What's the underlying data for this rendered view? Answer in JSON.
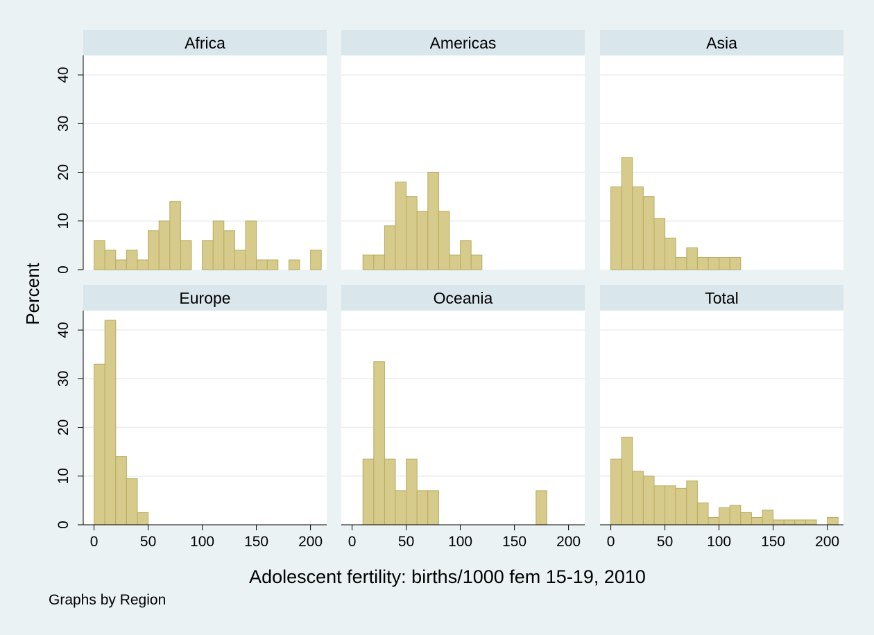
{
  "chart_data": {
    "type": "bar",
    "subtype": "histogram",
    "xlabel": "Adolescent fertility: births/1000 fem 15-19, 2010",
    "ylabel": "Percent",
    "note": "Graphs by Region",
    "xlim": [
      -10,
      215
    ],
    "ylim": [
      0,
      44
    ],
    "x_ticks": [
      0,
      50,
      100,
      150,
      200
    ],
    "y_ticks": [
      0,
      10,
      20,
      30,
      40
    ],
    "bin_start": 0,
    "bin_width": 10,
    "grid": true,
    "colors": {
      "background": "#eaf2f3",
      "plot_bg": "#ffffff",
      "panel_header": "#d9e6eb",
      "bar_fill": "#d6cb8a",
      "bar_stroke": "#b8ab62",
      "gridline": "#e8eef0"
    },
    "panels": [
      {
        "title": "Africa",
        "values": [
          6,
          4,
          2,
          4,
          2,
          8,
          10,
          14,
          6,
          0,
          6,
          10,
          8,
          4,
          10,
          2,
          2,
          0,
          2,
          0,
          4
        ]
      },
      {
        "title": "Americas",
        "values": [
          0,
          3,
          3,
          9,
          18,
          15,
          12,
          20,
          12,
          3,
          6,
          3
        ]
      },
      {
        "title": "Asia",
        "values": [
          17,
          23,
          17,
          15,
          10.5,
          6.5,
          2.5,
          4.5,
          2.5,
          2.5,
          2.5,
          2.5
        ]
      },
      {
        "title": "Europe",
        "values": [
          33,
          42,
          14,
          9.5,
          2.5
        ]
      },
      {
        "title": "Oceania",
        "values": [
          0,
          13.5,
          33.5,
          13.5,
          7,
          13.5,
          7,
          7,
          0,
          0,
          0,
          0,
          0,
          0,
          0,
          0,
          0,
          7
        ]
      },
      {
        "title": "Total",
        "values": [
          13.5,
          18,
          11,
          10,
          8,
          8,
          7.5,
          9,
          4.5,
          1.5,
          3.5,
          4,
          2.5,
          1.5,
          3,
          1,
          1,
          1,
          1,
          0,
          1.5
        ]
      }
    ]
  }
}
